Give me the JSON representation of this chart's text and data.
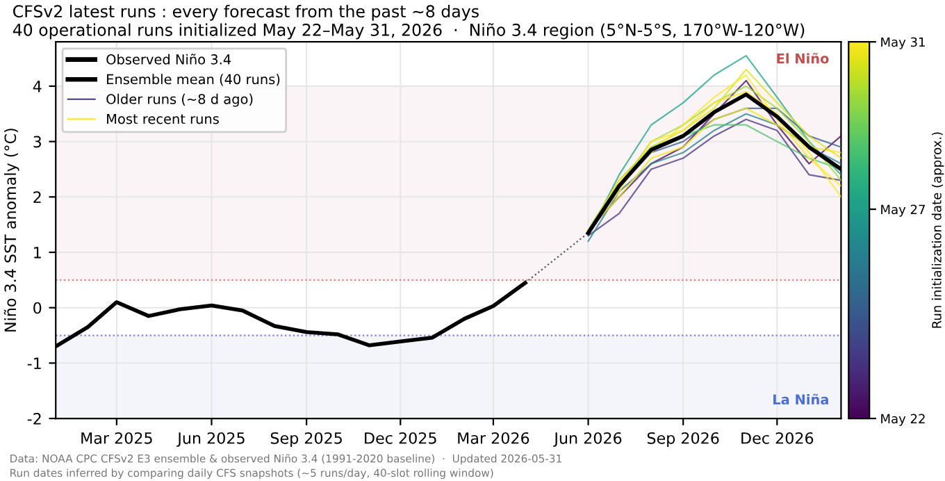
{
  "chart_data": {
    "type": "line",
    "title": "CFSv2 latest runs : every forecast from the past ~8 days",
    "subtitle": "40 operational runs initialized May 22–May 31, 2026  ·  Niño 3.4 region (5°N-5°S, 170°W-120°W)",
    "ylabel": "Niño 3.4 SST anomaly (°C)",
    "clabel": "Run initialization date (approx.)",
    "clim": [
      "2026-05-22",
      "2026-05-31"
    ],
    "cticks": [
      {
        "value": "2026-05-22",
        "label": "May 22"
      },
      {
        "value": "2026-05-27",
        "label": "May 27"
      },
      {
        "value": "2026-05-31",
        "label": "May 31"
      }
    ],
    "x": [
      "2026-06-01",
      "2026-07-01",
      "2026-08-01",
      "2026-09-01",
      "2026-10-01",
      "2026-11-01",
      "2026-12-01",
      "2027-01-01",
      "2027-02-01"
    ],
    "series": [
      {
        "name": "Older runs (~8 d ago)",
        "color": "#46327e",
        "values": [
          1.3,
          1.7,
          2.5,
          2.7,
          3.1,
          3.4,
          3.2,
          2.4,
          2.3
        ]
      },
      {
        "color": "#440154",
        "values": [
          1.4,
          2.0,
          2.6,
          2.9,
          3.5,
          4.1,
          3.3,
          2.6,
          3.1
        ]
      },
      {
        "color": "#365c8d",
        "values": [
          1.35,
          2.2,
          2.8,
          3.0,
          3.4,
          3.6,
          3.6,
          3.1,
          2.9
        ]
      },
      {
        "color": "#277f8e",
        "values": [
          1.2,
          2.1,
          2.6,
          2.8,
          3.2,
          3.5,
          3.3,
          2.9,
          2.6
        ]
      },
      {
        "color": "#1fa187",
        "values": [
          1.3,
          2.4,
          3.3,
          3.7,
          4.2,
          4.55,
          3.8,
          3.0,
          2.4
        ]
      },
      {
        "color": "#4ac16d",
        "values": [
          1.4,
          2.3,
          2.9,
          3.1,
          3.3,
          3.3,
          3.0,
          2.7,
          2.5
        ]
      },
      {
        "color": "#a0da39",
        "values": [
          1.35,
          2.2,
          3.0,
          3.3,
          3.7,
          4.0,
          3.6,
          3.0,
          2.3
        ]
      },
      {
        "color": "#d8e219",
        "values": [
          1.4,
          2.3,
          2.9,
          3.2,
          3.6,
          4.3,
          3.7,
          3.1,
          2.7
        ]
      },
      {
        "name": "Most recent runs",
        "color": "#fde725",
        "values": [
          1.4,
          2.1,
          3.0,
          3.2,
          3.7,
          3.9,
          3.5,
          2.8,
          2.0
        ]
      },
      {
        "color": "#fde725",
        "values": [
          1.35,
          2.3,
          2.8,
          3.3,
          3.8,
          4.2,
          3.4,
          2.7,
          2.2
        ]
      },
      {
        "color": "#f0e51c",
        "values": [
          1.4,
          2.0,
          2.7,
          2.9,
          3.4,
          3.6,
          3.3,
          2.9,
          2.8
        ]
      },
      {
        "name": "Observed Niño 3.4",
        "color": "#000000",
        "x": [
          "2025-01-01",
          "2025-02-01",
          "2025-03-01",
          "2025-04-01",
          "2025-05-01",
          "2025-06-01",
          "2025-07-01",
          "2025-08-01",
          "2025-09-01",
          "2025-10-01",
          "2025-11-01",
          "2025-12-01",
          "2026-01-01",
          "2026-02-01",
          "2026-03-01",
          "2026-04-01"
        ],
        "values": [
          -0.7,
          -0.35,
          0.1,
          -0.15,
          -0.03,
          0.04,
          -0.05,
          -0.33,
          -0.44,
          -0.48,
          -0.68,
          -0.61,
          -0.54,
          -0.2,
          0.03,
          0.45
        ]
      },
      {
        "color": "#555555",
        "line_style": "dotted",
        "x": [
          "2026-04-01",
          "2026-06-01"
        ],
        "values": [
          0.45,
          1.35
        ]
      },
      {
        "name": "Ensemble mean (40 runs)",
        "color": "#000000",
        "values": [
          1.35,
          2.2,
          2.85,
          3.1,
          3.53,
          3.85,
          3.45,
          2.9,
          2.5
        ]
      }
    ],
    "xlim": [
      "2025-01-01",
      "2027-02-01"
    ],
    "xticks": [
      {
        "value": "2025-03-01",
        "label": "Mar 2025"
      },
      {
        "value": "2025-06-01",
        "label": "Jun 2025"
      },
      {
        "value": "2025-09-01",
        "label": "Sep 2025"
      },
      {
        "value": "2025-12-01",
        "label": "Dec 2025"
      },
      {
        "value": "2026-03-01",
        "label": "Mar 2026"
      },
      {
        "value": "2026-06-01",
        "label": "Jun 2026"
      },
      {
        "value": "2026-09-01",
        "label": "Sep 2026"
      },
      {
        "value": "2026-12-01",
        "label": "Dec 2026"
      }
    ],
    "ylim": [
      -2,
      4.8
    ],
    "yticks": [
      -2,
      -1,
      0,
      1,
      2,
      3,
      4
    ],
    "bands": [
      {
        "axis": "y",
        "from": 0.5,
        "to": 4,
        "label": "El Niño",
        "color": "#fbf4f6"
      },
      {
        "axis": "y",
        "from": -2,
        "to": -0.5,
        "label": "La Niña",
        "color": "#f4f5fb"
      }
    ],
    "ref_lines": [
      {
        "axis": "y",
        "value": 0.5,
        "color": "#e08080",
        "line_style": "dotted"
      },
      {
        "axis": "y",
        "value": -0.5,
        "color": "#8080e0",
        "line_style": "dotted"
      }
    ],
    "annotations": [
      "Data: NOAA CPC CFSv2 E3 ensemble & observed Niño 3.4 (1991-2020 baseline)  ·  Updated 2026-05-31",
      "Run dates inferred by comparing daily CFS snapshots (~5 runs/day, 40-slot rolling window)"
    ],
    "grid": true,
    "legend": "top left",
    "line_style": "solid"
  }
}
